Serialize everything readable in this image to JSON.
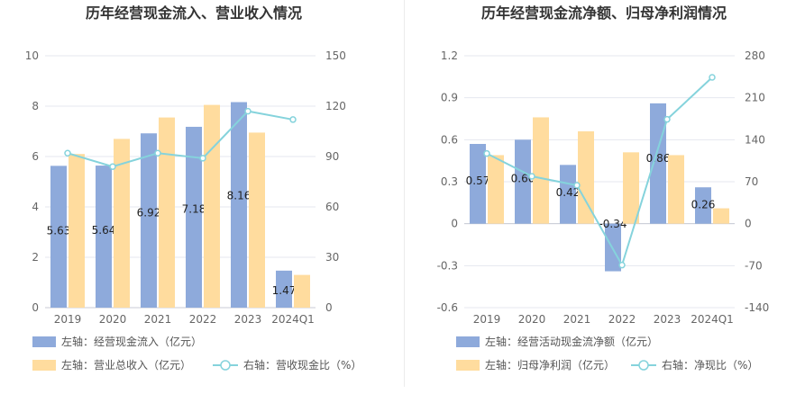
{
  "colors": {
    "blue": "#8eaadb",
    "orange": "#ffdc9e",
    "line": "#85d3dc",
    "grid": "#e4e7ef"
  },
  "chart_data": [
    {
      "type": "bar",
      "title": "历年经营现金流入、营业收入情况",
      "categories": [
        "2019",
        "2020",
        "2021",
        "2022",
        "2023",
        "2024Q1"
      ],
      "y_left": {
        "min": 0,
        "max": 10,
        "ticks": [
          "0",
          "2",
          "4",
          "6",
          "8",
          "10"
        ]
      },
      "y_right": {
        "min": 0,
        "max": 150,
        "ticks": [
          "0",
          "30",
          "60",
          "90",
          "120",
          "150"
        ]
      },
      "series": [
        {
          "name": "左轴：经营现金流入（亿元）",
          "type": "bar",
          "axis": "left",
          "color": "#8eaadb",
          "values": [
            5.63,
            5.64,
            6.92,
            7.18,
            8.16,
            1.47
          ],
          "labels": [
            "5.63",
            "5.64",
            "6.92",
            "7.18",
            "8.16",
            "1.47"
          ]
        },
        {
          "name": "左轴：营业总收入（亿元）",
          "type": "bar",
          "axis": "left",
          "color": "#ffdc9e",
          "values": [
            6.1,
            6.7,
            7.55,
            8.05,
            6.95,
            1.3
          ]
        },
        {
          "name": "右轴：营收现金比（%）",
          "type": "line",
          "axis": "right",
          "color": "#85d3dc",
          "values": [
            92,
            84,
            92,
            89,
            117,
            112
          ]
        }
      ]
    },
    {
      "type": "bar",
      "title": "历年经营现金流净额、归母净利润情况",
      "categories": [
        "2019",
        "2020",
        "2021",
        "2022",
        "2023",
        "2024Q1"
      ],
      "y_left": {
        "min": -0.6,
        "max": 1.2,
        "ticks": [
          "-0.6",
          "-0.3",
          "0",
          "0.3",
          "0.6",
          "0.9",
          "1.2"
        ]
      },
      "y_right": {
        "min": -140,
        "max": 280,
        "ticks": [
          "-140",
          "-70",
          "0",
          "70",
          "140",
          "210",
          "280"
        ]
      },
      "series": [
        {
          "name": "左轴：经营活动现金流净额（亿元）",
          "type": "bar",
          "axis": "left",
          "color": "#8eaadb",
          "values": [
            0.57,
            0.6,
            0.42,
            -0.34,
            0.86,
            0.26
          ],
          "labels": [
            "0.57",
            "0.60",
            "0.42",
            "-0.34",
            "0.86",
            "0.26"
          ]
        },
        {
          "name": "左轴：归母净利润（亿元）",
          "type": "bar",
          "axis": "left",
          "color": "#ffdc9e",
          "values": [
            0.49,
            0.76,
            0.66,
            0.51,
            0.49,
            0.11
          ]
        },
        {
          "name": "右轴：净现比（%）",
          "type": "line",
          "axis": "right",
          "color": "#85d3dc",
          "values": [
            117,
            79,
            64,
            -69,
            174,
            244
          ]
        }
      ]
    }
  ]
}
